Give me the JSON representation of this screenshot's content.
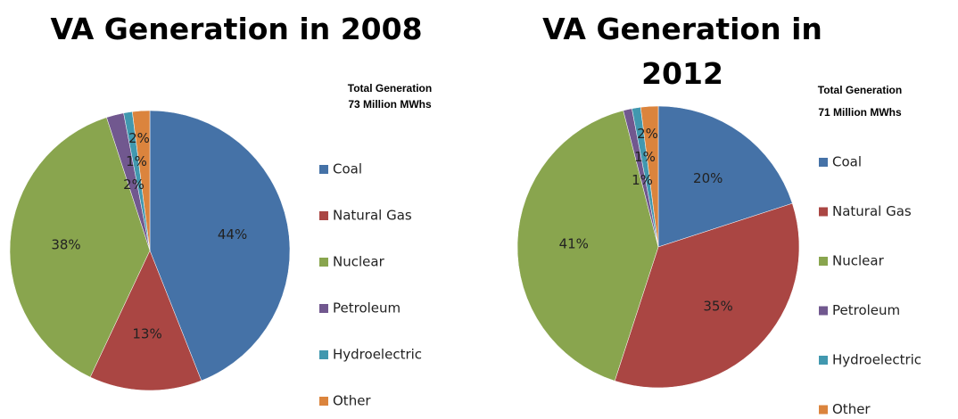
{
  "chart_data": [
    {
      "type": "pie",
      "title": "VA Generation in 2008",
      "annotation": [
        "Total Generation",
        "73 Million MWhs"
      ],
      "categories": [
        "Coal",
        "Natural Gas",
        "Nuclear",
        "Petroleum",
        "Hydroelectric",
        "Other"
      ],
      "values": [
        44,
        13,
        38,
        2,
        1,
        2
      ],
      "value_labels": [
        "44%",
        "13%",
        "38%",
        "2%",
        "1%",
        "2%"
      ],
      "colors": [
        "#4572a7",
        "#aa4643",
        "#89a54e",
        "#71588f",
        "#4198af",
        "#db843d"
      ]
    },
    {
      "type": "pie",
      "title": "VA Generation in 2012",
      "annotation": [
        "Total Generation",
        "71 Million MWhs"
      ],
      "categories": [
        "Coal",
        "Natural Gas",
        "Nuclear",
        "Petroleum",
        "Hydroelectric",
        "Other"
      ],
      "values": [
        20,
        35,
        41,
        1,
        1,
        2
      ],
      "value_labels": [
        "20%",
        "35%",
        "41%",
        "1%",
        "1%",
        "2%"
      ],
      "colors": [
        "#4572a7",
        "#aa4643",
        "#89a54e",
        "#71588f",
        "#4198af",
        "#db843d"
      ]
    }
  ]
}
